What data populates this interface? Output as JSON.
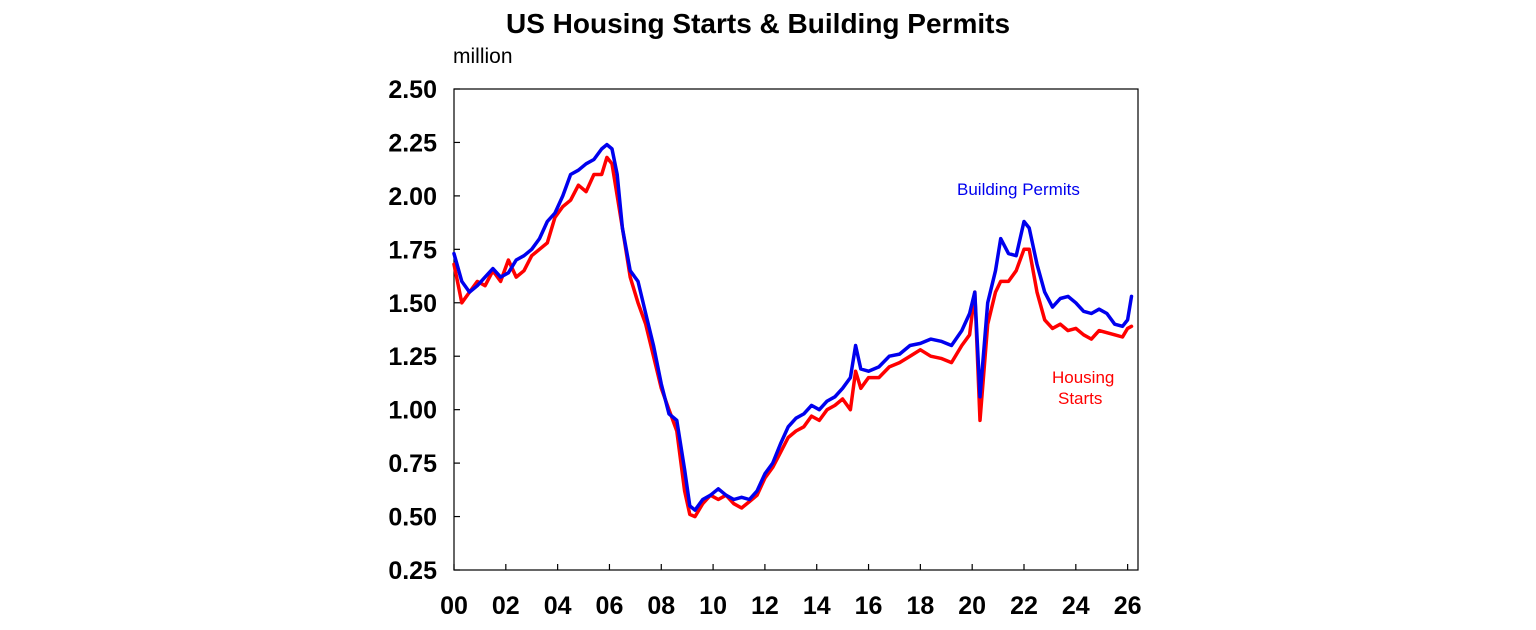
{
  "chart_data": {
    "type": "line",
    "title": "US Housing Starts & Building Permits",
    "ylabel": "million",
    "xlabel": "",
    "xlim": [
      2000,
      2026.4
    ],
    "ylim": [
      0.25,
      2.5
    ],
    "y_ticks": [
      0.25,
      0.5,
      0.75,
      1.0,
      1.25,
      1.5,
      1.75,
      2.0,
      2.25,
      2.5
    ],
    "y_tick_labels": [
      "0.25",
      "0.50",
      "0.75",
      "1.00",
      "1.25",
      "1.50",
      "1.75",
      "2.00",
      "2.25",
      "2.50"
    ],
    "x_ticks": [
      2000,
      2002,
      2004,
      2006,
      2008,
      2010,
      2012,
      2014,
      2016,
      2018,
      2020,
      2022,
      2024,
      2026
    ],
    "x_tick_labels": [
      "00",
      "02",
      "04",
      "06",
      "08",
      "10",
      "12",
      "14",
      "16",
      "18",
      "20",
      "22",
      "24",
      "26"
    ],
    "grid": false,
    "colors": {
      "permits": "#0000ee",
      "starts": "#ff0000",
      "axis": "#000000"
    },
    "series": [
      {
        "name": "Building Permits",
        "color": "#0000ee",
        "x": [
          2000.0,
          2000.3,
          2000.6,
          2000.9,
          2001.2,
          2001.5,
          2001.8,
          2002.1,
          2002.4,
          2002.7,
          2003.0,
          2003.3,
          2003.6,
          2003.9,
          2004.2,
          2004.5,
          2004.8,
          2005.1,
          2005.4,
          2005.7,
          2005.9,
          2006.1,
          2006.3,
          2006.5,
          2006.8,
          2007.1,
          2007.4,
          2007.7,
          2008.0,
          2008.3,
          2008.6,
          2008.9,
          2009.1,
          2009.3,
          2009.6,
          2009.9,
          2010.2,
          2010.5,
          2010.8,
          2011.1,
          2011.4,
          2011.7,
          2012.0,
          2012.3,
          2012.6,
          2012.9,
          2013.2,
          2013.5,
          2013.8,
          2014.1,
          2014.4,
          2014.7,
          2015.0,
          2015.3,
          2015.5,
          2015.7,
          2016.0,
          2016.4,
          2016.8,
          2017.2,
          2017.6,
          2018.0,
          2018.4,
          2018.8,
          2019.2,
          2019.6,
          2019.9,
          2020.1,
          2020.3,
          2020.6,
          2020.9,
          2021.1,
          2021.4,
          2021.7,
          2022.0,
          2022.2,
          2022.5,
          2022.8,
          2023.1,
          2023.4,
          2023.7,
          2024.0,
          2024.3,
          2024.6,
          2024.9,
          2025.2,
          2025.5,
          2025.8,
          2026.0,
          2026.15
        ],
        "y": [
          1.73,
          1.6,
          1.55,
          1.58,
          1.62,
          1.66,
          1.62,
          1.64,
          1.7,
          1.72,
          1.75,
          1.8,
          1.88,
          1.92,
          2.0,
          2.1,
          2.12,
          2.15,
          2.17,
          2.22,
          2.24,
          2.22,
          2.1,
          1.85,
          1.65,
          1.6,
          1.45,
          1.3,
          1.12,
          0.98,
          0.95,
          0.72,
          0.55,
          0.53,
          0.58,
          0.6,
          0.63,
          0.6,
          0.58,
          0.59,
          0.58,
          0.62,
          0.7,
          0.75,
          0.84,
          0.92,
          0.96,
          0.98,
          1.02,
          1.0,
          1.04,
          1.06,
          1.1,
          1.15,
          1.3,
          1.19,
          1.18,
          1.2,
          1.25,
          1.26,
          1.3,
          1.31,
          1.33,
          1.32,
          1.3,
          1.37,
          1.45,
          1.55,
          1.06,
          1.5,
          1.65,
          1.8,
          1.73,
          1.72,
          1.88,
          1.85,
          1.68,
          1.55,
          1.48,
          1.52,
          1.53,
          1.5,
          1.46,
          1.45,
          1.47,
          1.45,
          1.4,
          1.39,
          1.42,
          1.53
        ]
      },
      {
        "name": "Housing Starts",
        "color": "#ff0000",
        "x": [
          2000.0,
          2000.3,
          2000.6,
          2000.9,
          2001.2,
          2001.5,
          2001.8,
          2002.1,
          2002.4,
          2002.7,
          2003.0,
          2003.3,
          2003.6,
          2003.9,
          2004.2,
          2004.5,
          2004.8,
          2005.1,
          2005.4,
          2005.7,
          2005.9,
          2006.1,
          2006.3,
          2006.5,
          2006.8,
          2007.1,
          2007.4,
          2007.7,
          2008.0,
          2008.3,
          2008.6,
          2008.9,
          2009.1,
          2009.3,
          2009.6,
          2009.9,
          2010.2,
          2010.5,
          2010.8,
          2011.1,
          2011.4,
          2011.7,
          2012.0,
          2012.3,
          2012.6,
          2012.9,
          2013.2,
          2013.5,
          2013.8,
          2014.1,
          2014.4,
          2014.7,
          2015.0,
          2015.3,
          2015.5,
          2015.7,
          2016.0,
          2016.4,
          2016.8,
          2017.2,
          2017.6,
          2018.0,
          2018.4,
          2018.8,
          2019.2,
          2019.6,
          2019.9,
          2020.1,
          2020.3,
          2020.6,
          2020.9,
          2021.1,
          2021.4,
          2021.7,
          2022.0,
          2022.2,
          2022.5,
          2022.8,
          2023.1,
          2023.4,
          2023.7,
          2024.0,
          2024.3,
          2024.6,
          2024.9,
          2025.2,
          2025.5,
          2025.8,
          2026.0,
          2026.15
        ],
        "y": [
          1.68,
          1.5,
          1.55,
          1.6,
          1.58,
          1.65,
          1.6,
          1.7,
          1.62,
          1.65,
          1.72,
          1.75,
          1.78,
          1.9,
          1.95,
          1.98,
          2.05,
          2.02,
          2.1,
          2.1,
          2.18,
          2.15,
          2.0,
          1.85,
          1.62,
          1.5,
          1.4,
          1.25,
          1.1,
          1.0,
          0.9,
          0.62,
          0.51,
          0.5,
          0.56,
          0.6,
          0.58,
          0.6,
          0.56,
          0.54,
          0.57,
          0.6,
          0.68,
          0.73,
          0.8,
          0.87,
          0.9,
          0.92,
          0.97,
          0.95,
          1.0,
          1.02,
          1.05,
          1.0,
          1.18,
          1.1,
          1.15,
          1.15,
          1.2,
          1.22,
          1.25,
          1.28,
          1.25,
          1.24,
          1.22,
          1.3,
          1.35,
          1.55,
          0.95,
          1.4,
          1.55,
          1.6,
          1.6,
          1.65,
          1.75,
          1.75,
          1.55,
          1.42,
          1.38,
          1.4,
          1.37,
          1.38,
          1.35,
          1.33,
          1.37,
          1.36,
          1.35,
          1.34,
          1.38,
          1.39
        ]
      }
    ],
    "annotations": [
      {
        "text": "Building Permits",
        "color": "#0000ee"
      },
      {
        "text": "Housing",
        "color": "#ff0000"
      },
      {
        "text": "Starts",
        "color": "#ff0000"
      }
    ]
  }
}
